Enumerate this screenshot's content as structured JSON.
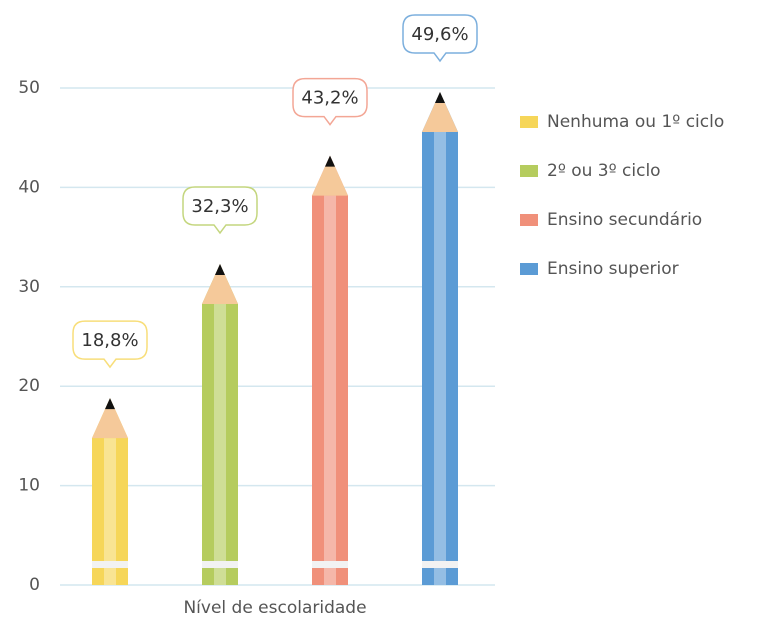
{
  "chart_data": {
    "type": "pencil-bar",
    "x_label": "Nível de escolaridade",
    "series": [
      {
        "name": "Nenhuma ou 1º ciclo",
        "color": "#f6d659",
        "values": [
          18.8
        ],
        "value_labels": [
          "18,8%"
        ]
      },
      {
        "name": "2º ou 3º ciclo",
        "color": "#b5cc5e",
        "values": [
          32.3
        ],
        "value_labels": [
          "32,3%"
        ]
      },
      {
        "name": "Ensino secundário",
        "color": "#f0907a",
        "values": [
          43.2
        ],
        "value_labels": [
          "43,2%"
        ]
      },
      {
        "name": "Ensino superior",
        "color": "#5b9bd5",
        "values": [
          49.6
        ],
        "value_labels": [
          "49,6%"
        ]
      }
    ],
    "ylim": [
      0,
      50
    ],
    "yticks": [
      0,
      10,
      20,
      30,
      40,
      50
    ],
    "grid": true,
    "legend": "right"
  }
}
